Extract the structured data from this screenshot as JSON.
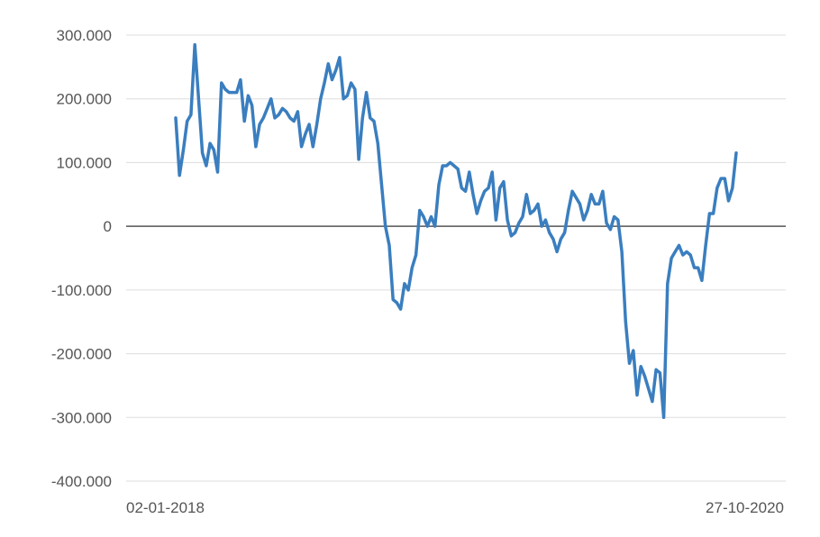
{
  "chart_data": {
    "type": "line",
    "title": "",
    "xlabel": "",
    "ylabel": "",
    "x_tick_labels": [
      "02-01-2018",
      "27-10-2020"
    ],
    "y_tick_labels": [
      "300.000",
      "200.000",
      "100.000",
      "0",
      "-100.000",
      "-200.000",
      "-300.000",
      "-400.000"
    ],
    "y_ticks": [
      300000,
      200000,
      100000,
      0,
      -100000,
      -200000,
      -300000,
      -400000
    ],
    "ylim": [
      -400000,
      300000
    ],
    "x_range": [
      "2018-01-02",
      "2020-10-27"
    ],
    "grid": true,
    "legend": "none",
    "colors": {
      "line": "#3a7ebf",
      "grid": "#dddddd",
      "zero_line": "#555555",
      "text": "#555555"
    },
    "series": [
      {
        "values": [
          170000,
          80000,
          120000,
          165000,
          175000,
          285000,
          200000,
          115000,
          95000,
          130000,
          120000,
          85000,
          225000,
          215000,
          210000,
          210000,
          210000,
          230000,
          165000,
          205000,
          190000,
          125000,
          160000,
          170000,
          185000,
          200000,
          170000,
          175000,
          185000,
          180000,
          170000,
          165000,
          180000,
          125000,
          145000,
          160000,
          125000,
          160000,
          200000,
          225000,
          255000,
          230000,
          245000,
          265000,
          200000,
          205000,
          225000,
          215000,
          105000,
          170000,
          210000,
          170000,
          165000,
          130000,
          65000,
          0,
          -30000,
          -115000,
          -120000,
          -130000,
          -90000,
          -100000,
          -65000,
          -45000,
          25000,
          15000,
          0,
          15000,
          0,
          65000,
          95000,
          95000,
          100000,
          95000,
          90000,
          60000,
          55000,
          85000,
          50000,
          20000,
          40000,
          55000,
          60000,
          85000,
          10000,
          60000,
          70000,
          10000,
          -15000,
          -10000,
          5000,
          15000,
          50000,
          20000,
          25000,
          35000,
          0,
          10000,
          -10000,
          -20000,
          -40000,
          -20000,
          -10000,
          25000,
          55000,
          45000,
          35000,
          10000,
          25000,
          50000,
          35000,
          35000,
          55000,
          5000,
          -5000,
          15000,
          10000,
          -40000,
          -150000,
          -215000,
          -195000,
          -265000,
          -220000,
          -235000,
          -255000,
          -275000,
          -225000,
          -230000,
          -300000,
          -90000,
          -50000,
          -40000,
          -30000,
          -45000,
          -40000,
          -45000,
          -65000,
          -65000,
          -85000,
          -30000,
          20000,
          20000,
          60000,
          75000,
          75000,
          40000,
          60000,
          115000
        ]
      }
    ]
  }
}
